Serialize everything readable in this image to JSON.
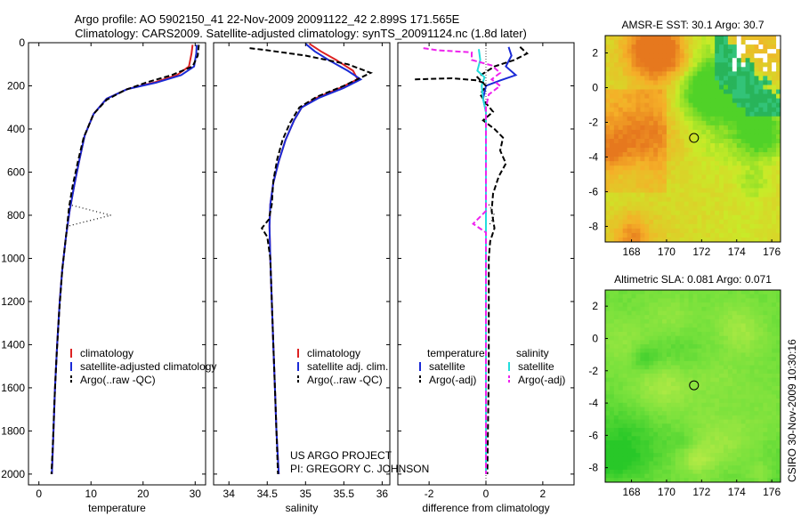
{
  "header": {
    "title_line1": "Argo profile: AO 5902150_41 22-Nov-2009 20091122_42 2.899S 171.565E",
    "title_line2": "Climatology: CARS2009. Satellite-adjusted climatology: synTS_20091124.nc (1.8d later)"
  },
  "credits": {
    "project": "US ARGO PROJECT",
    "pi": "PI: GREGORY C. JOHNSON",
    "stamp": "CSIRO 30-Nov-2009 10:30:16"
  },
  "colors": {
    "climatology": "#dd2222",
    "satellite": "#1a2ad6",
    "argo": "#000000",
    "cyan": "#22dddd",
    "magenta": "#ee22ee"
  },
  "chart_data": [
    {
      "type": "line",
      "id": "temperature",
      "xlabel": "temperature",
      "ylabel": "",
      "xlim": [
        -2,
        32
      ],
      "ylim": [
        2050,
        0
      ],
      "xticks": [
        "0",
        "10",
        "20",
        "30"
      ],
      "xtick_values": [
        0,
        10,
        20,
        30
      ],
      "yticks": [
        "0",
        "200",
        "400",
        "600",
        "800",
        "1000",
        "1200",
        "1400",
        "1600",
        "1800",
        "2000"
      ],
      "ytick_values": [
        0,
        200,
        400,
        600,
        800,
        1000,
        1200,
        1400,
        1600,
        1800,
        2000
      ],
      "legend": [
        "climatology",
        "satellite-adjusted climatology",
        "Argo(..raw -QC)"
      ],
      "series": [
        {
          "name": "climatology",
          "style": "solid",
          "color": "#dd2222",
          "points": [
            [
              29.5,
              10
            ],
            [
              29.3,
              50
            ],
            [
              28.8,
              110
            ],
            [
              26.5,
              150
            ],
            [
              22,
              185
            ],
            [
              17,
              215
            ],
            [
              13,
              260
            ],
            [
              10.5,
              330
            ],
            [
              8.8,
              430
            ],
            [
              7.8,
              540
            ],
            [
              6.8,
              660
            ],
            [
              5.9,
              780
            ],
            [
              5.2,
              900
            ],
            [
              4.5,
              1050
            ],
            [
              4,
              1200
            ],
            [
              3.5,
              1400
            ],
            [
              3.1,
              1600
            ],
            [
              2.8,
              1800
            ],
            [
              2.5,
              2000
            ]
          ]
        },
        {
          "name": "satellite-adjusted climatology",
          "style": "solid",
          "color": "#1a2ad6",
          "points": [
            [
              30.3,
              10
            ],
            [
              30.2,
              50
            ],
            [
              29.8,
              110
            ],
            [
              27.3,
              150
            ],
            [
              22.5,
              185
            ],
            [
              17,
              215
            ],
            [
              13,
              260
            ],
            [
              10.5,
              330
            ],
            [
              8.8,
              430
            ],
            [
              7.8,
              540
            ],
            [
              6.8,
              660
            ],
            [
              5.9,
              780
            ],
            [
              5.2,
              900
            ],
            [
              4.5,
              1050
            ],
            [
              4,
              1200
            ],
            [
              3.5,
              1400
            ],
            [
              3.1,
              1600
            ],
            [
              2.8,
              1800
            ],
            [
              2.5,
              2000
            ]
          ]
        },
        {
          "name": "Argo(..raw -QC)",
          "style": "dash",
          "color": "#000000",
          "points": [
            [
              30.7,
              10
            ],
            [
              30.5,
              60
            ],
            [
              29.5,
              110
            ],
            [
              25.5,
              150
            ],
            [
              20.5,
              185
            ],
            [
              16.5,
              220
            ],
            [
              13,
              265
            ],
            [
              10.5,
              330
            ],
            [
              8.6,
              440
            ],
            [
              7.5,
              550
            ],
            [
              6.5,
              660
            ],
            [
              5.8,
              760
            ],
            [
              5.2,
              900
            ],
            [
              4.5,
              1050
            ],
            [
              3.9,
              1250
            ],
            [
              3.4,
              1450
            ],
            [
              3,
              1650
            ],
            [
              2.7,
              1850
            ],
            [
              2.4,
              2000
            ]
          ]
        },
        {
          "name": "Argo raw",
          "style": "dot",
          "color": "#000000",
          "points": [
            [
              5.7,
              750
            ],
            [
              13.8,
              800
            ],
            [
              5.6,
              850
            ]
          ]
        }
      ]
    },
    {
      "type": "line",
      "id": "salinity",
      "xlabel": "salinity",
      "xlim": [
        33.8,
        36.1
      ],
      "ylim": [
        2050,
        0
      ],
      "xticks": [
        "34",
        "34.5",
        "35",
        "35.5",
        "36"
      ],
      "xtick_values": [
        34,
        34.5,
        35,
        35.5,
        36
      ],
      "legend": [
        "climatology",
        "satellite adj. clim.",
        "Argo(..raw -QC)"
      ],
      "series": [
        {
          "name": "climatology",
          "style": "solid",
          "color": "#dd2222",
          "points": [
            [
              35.05,
              5
            ],
            [
              35.2,
              40
            ],
            [
              35.4,
              80
            ],
            [
              35.62,
              130
            ],
            [
              35.68,
              170
            ],
            [
              35.45,
              210
            ],
            [
              35.15,
              255
            ],
            [
              34.95,
              300
            ],
            [
              34.85,
              360
            ],
            [
              34.74,
              450
            ],
            [
              34.65,
              550
            ],
            [
              34.58,
              650
            ],
            [
              34.54,
              750
            ],
            [
              34.53,
              850
            ],
            [
              34.54,
              1000
            ],
            [
              34.56,
              1200
            ],
            [
              34.58,
              1400
            ],
            [
              34.6,
              1600
            ],
            [
              34.62,
              1800
            ],
            [
              34.65,
              2000
            ]
          ]
        },
        {
          "name": "satellite adj. clim.",
          "style": "solid",
          "color": "#1a2ad6",
          "points": [
            [
              35.0,
              5
            ],
            [
              35.12,
              40
            ],
            [
              35.3,
              80
            ],
            [
              35.55,
              130
            ],
            [
              35.72,
              170
            ],
            [
              35.5,
              210
            ],
            [
              35.18,
              255
            ],
            [
              34.95,
              300
            ],
            [
              34.85,
              360
            ],
            [
              34.74,
              450
            ],
            [
              34.65,
              550
            ],
            [
              34.58,
              650
            ],
            [
              34.54,
              750
            ],
            [
              34.53,
              850
            ],
            [
              34.54,
              1000
            ],
            [
              34.56,
              1200
            ],
            [
              34.58,
              1400
            ],
            [
              34.6,
              1600
            ],
            [
              34.62,
              1800
            ],
            [
              34.65,
              2000
            ]
          ]
        },
        {
          "name": "Argo(..raw -QC)",
          "style": "dash",
          "color": "#000000",
          "points": [
            [
              34.27,
              25
            ],
            [
              34.5,
              35
            ],
            [
              35.0,
              60
            ],
            [
              35.55,
              100
            ],
            [
              35.85,
              140
            ],
            [
              35.5,
              200
            ],
            [
              35.15,
              250
            ],
            [
              34.92,
              300
            ],
            [
              34.8,
              370
            ],
            [
              34.7,
              450
            ],
            [
              34.63,
              540
            ],
            [
              34.58,
              640
            ],
            [
              34.56,
              750
            ],
            [
              34.52,
              820
            ],
            [
              34.43,
              860
            ],
            [
              34.5,
              900
            ],
            [
              34.54,
              1000
            ],
            [
              34.56,
              1200
            ],
            [
              34.58,
              1400
            ],
            [
              34.6,
              1600
            ],
            [
              34.62,
              1800
            ],
            [
              34.64,
              2000
            ]
          ]
        }
      ]
    },
    {
      "type": "line",
      "id": "difference",
      "xlabel": "difference from climatology",
      "xlim": [
        -3.1,
        3.1
      ],
      "ylim": [
        2050,
        0
      ],
      "xticks": [
        "-2",
        "0",
        "2"
      ],
      "xtick_values": [
        -2,
        0,
        2
      ],
      "legend_left_title": "temperature",
      "legend_right_title": "salinity",
      "legend": [
        "satellite",
        "Argo(-adj)",
        "satellite",
        "Argo(-adj)"
      ],
      "series": [
        {
          "name": "temperature satellite",
          "style": "solid",
          "color": "#1a2ad6",
          "points": [
            [
              0.8,
              20
            ],
            [
              0.9,
              60
            ],
            [
              0.7,
              110
            ],
            [
              1.05,
              150
            ],
            [
              0.5,
              175
            ],
            [
              0.0,
              200
            ],
            [
              -0.1,
              260
            ],
            [
              0.0,
              320
            ],
            [
              0.0,
              600
            ],
            [
              0.0,
              1000
            ],
            [
              0.0,
              2000
            ]
          ]
        },
        {
          "name": "temperature Argo(-adj)",
          "style": "dash",
          "color": "#000000",
          "points": [
            [
              1.2,
              20
            ],
            [
              1.45,
              50
            ],
            [
              1.0,
              80
            ],
            [
              0.3,
              110
            ],
            [
              -0.3,
              160
            ],
            [
              0.0,
              200
            ],
            [
              -0.2,
              240
            ],
            [
              0.0,
              280
            ],
            [
              0.25,
              320
            ],
            [
              -0.1,
              360
            ],
            [
              0.3,
              400
            ],
            [
              0.6,
              440
            ],
            [
              0.5,
              500
            ],
            [
              0.7,
              560
            ],
            [
              0.45,
              620
            ],
            [
              0.25,
              700
            ],
            [
              0.2,
              780
            ],
            [
              0.3,
              860
            ],
            [
              0.15,
              920
            ],
            [
              0.1,
              1000
            ],
            [
              0.1,
              1500
            ],
            [
              0.05,
              2000
            ]
          ]
        },
        {
          "name": "temperature Argo raw",
          "style": "dot",
          "color": "#000000",
          "points": [
            [
              0.1,
              750
            ],
            [
              0.3,
              800
            ],
            [
              0.1,
              850
            ]
          ]
        },
        {
          "name": "salinity satellite",
          "style": "solid",
          "color": "#22dddd",
          "points": [
            [
              -0.25,
              30
            ],
            [
              -0.2,
              80
            ],
            [
              -0.3,
              130
            ],
            [
              -0.05,
              160
            ],
            [
              -0.15,
              200
            ],
            [
              -0.1,
              260
            ],
            [
              0.0,
              320
            ],
            [
              0.0,
              600
            ],
            [
              0.0,
              1000
            ],
            [
              0.0,
              2000
            ]
          ]
        },
        {
          "name": "salinity Argo(-adj)",
          "style": "dash",
          "color": "#ee22ee",
          "points": [
            [
              -2.2,
              25
            ],
            [
              -1.7,
              35
            ],
            [
              -0.5,
              45
            ],
            [
              -0.5,
              80
            ],
            [
              0.2,
              105
            ],
            [
              0.5,
              140
            ],
            [
              0.2,
              170
            ],
            [
              0.5,
              200
            ],
            [
              0.1,
              240
            ],
            [
              0.0,
              300
            ],
            [
              0.0,
              780
            ],
            [
              -0.45,
              840
            ],
            [
              0.0,
              880
            ],
            [
              0.0,
              2000
            ]
          ]
        },
        {
          "name": "Argo salinity raw",
          "style": "dash",
          "color": "#000000",
          "points": [
            [
              -2.5,
              170
            ],
            [
              -1.2,
              165
            ],
            [
              -0.3,
              175
            ],
            [
              0.0,
              190
            ]
          ]
        }
      ]
    },
    {
      "type": "heatmap",
      "id": "sst_map",
      "title": "AMSR-E SST: 30.1  Argo: 30.7",
      "xlim": [
        166.5,
        176.5
      ],
      "ylim": [
        -8.9,
        3.0
      ],
      "xticks": [
        "168",
        "170",
        "172",
        "174",
        "176"
      ],
      "xtick_values": [
        168,
        170,
        172,
        174,
        176
      ],
      "yticks": [
        "2",
        "0",
        "-2",
        "-4",
        "-6",
        "-8"
      ],
      "ytick_values": [
        2,
        0,
        -2,
        -4,
        -6,
        -8
      ],
      "marker": {
        "lon": 171.565,
        "lat": -2.899
      }
    },
    {
      "type": "heatmap",
      "id": "sla_map",
      "title": "Altimetric SLA: 0.081  Argo: 0.071",
      "xlim": [
        166.5,
        176.5
      ],
      "ylim": [
        -8.9,
        3.0
      ],
      "xticks": [
        "168",
        "170",
        "172",
        "174",
        "176"
      ],
      "xtick_values": [
        168,
        170,
        172,
        174,
        176
      ],
      "yticks": [
        "2",
        "0",
        "-2",
        "-4",
        "-6",
        "-8"
      ],
      "ytick_values": [
        2,
        0,
        -2,
        -4,
        -6,
        -8
      ],
      "marker": {
        "lon": 171.565,
        "lat": -2.899
      }
    }
  ]
}
